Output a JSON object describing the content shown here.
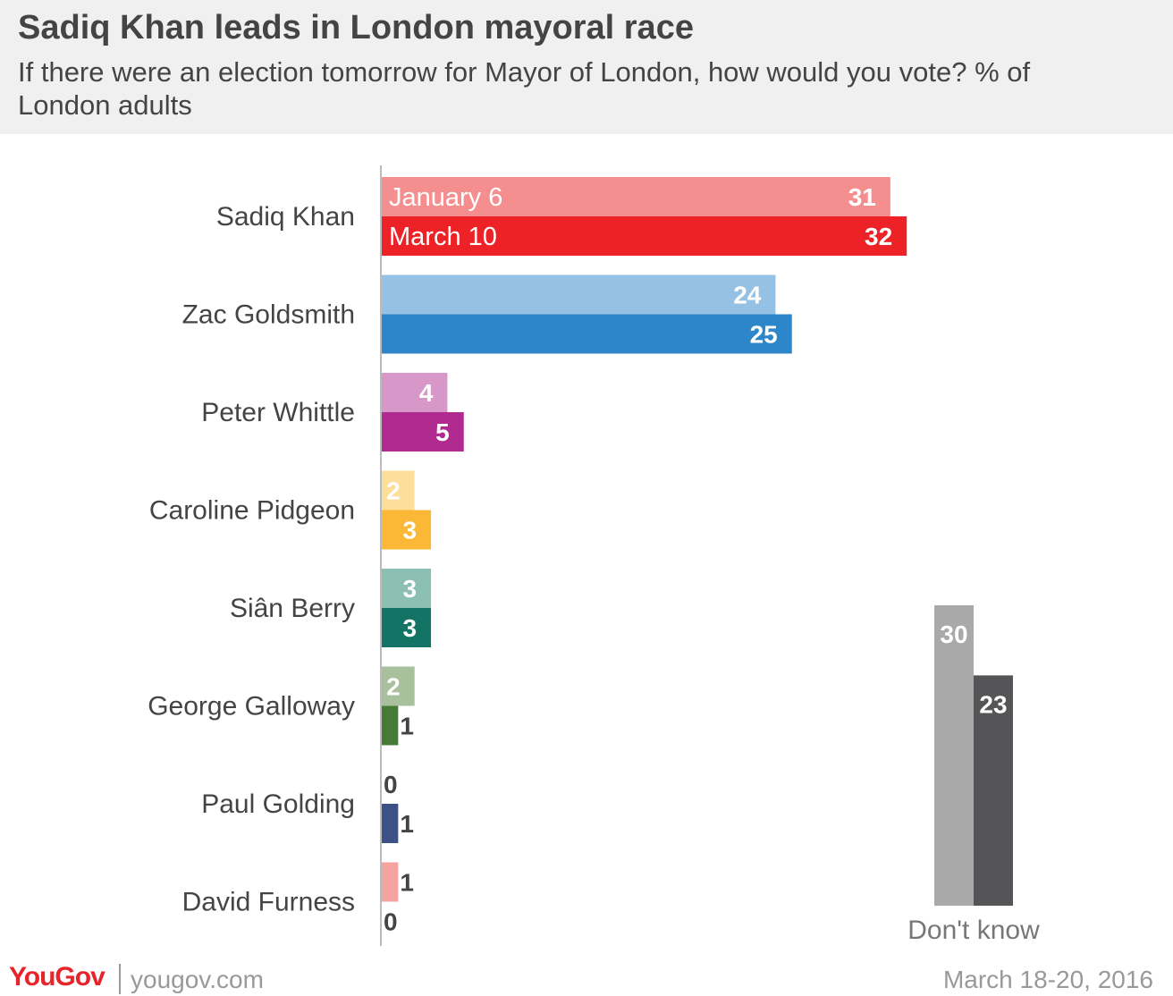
{
  "header": {
    "title": "Sadiq Khan leads in London mayoral race",
    "subtitle": "If there were an election tomorrow for Mayor of London, how would you vote? % of London adults"
  },
  "footer": {
    "brand": "YouGov",
    "site": "yougov.com",
    "date": "March 18-20, 2016"
  },
  "chart_data": [
    {
      "type": "bar",
      "orientation": "horizontal",
      "categories": [
        "Sadiq Khan",
        "Zac Goldsmith",
        "Peter Whittle",
        "Caroline Pidgeon",
        "Siân Berry",
        "George Galloway",
        "Paul Golding",
        "David Furness"
      ],
      "series": [
        {
          "name": "January 6",
          "values": [
            31,
            24,
            4,
            2,
            3,
            2,
            0,
            1
          ],
          "colors": [
            "#f58f8f",
            "#95c2e4",
            "#d797c9",
            "#fdde9a",
            "#8abfb2",
            "#a9c09c",
            "#8e9bbd",
            "#f4a3a0"
          ]
        },
        {
          "name": "March 10",
          "values": [
            32,
            25,
            5,
            3,
            3,
            1,
            1,
            0
          ],
          "colors": [
            "#ed2227",
            "#2d86c9",
            "#b12a90",
            "#fbb836",
            "#137465",
            "#457a37",
            "#3c5185",
            "#e8242b"
          ]
        }
      ],
      "legend": "inside first bars"
    },
    {
      "type": "bar",
      "orientation": "vertical",
      "categories": [
        "Don't know"
      ],
      "series": [
        {
          "name": "January 6",
          "values": [
            30
          ],
          "color": "#a9a9a9"
        },
        {
          "name": "March 10",
          "values": [
            23
          ],
          "color": "#555557"
        }
      ]
    }
  ]
}
